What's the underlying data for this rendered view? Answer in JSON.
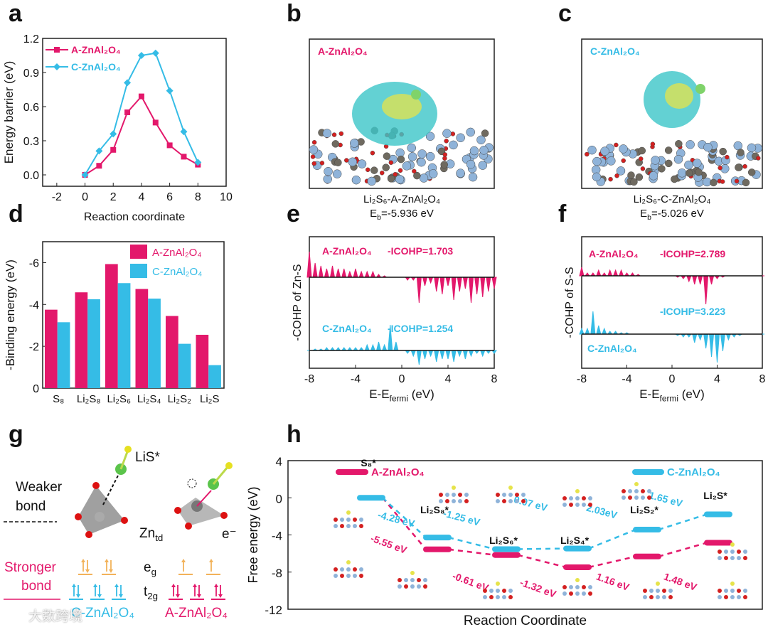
{
  "colors": {
    "A": "#e3186b",
    "C": "#35bce6",
    "orange": "#f2b25a"
  },
  "panel_labels": [
    "a",
    "b",
    "c",
    "d",
    "e",
    "f",
    "g",
    "h"
  ],
  "chart_data": [
    {
      "id": "a",
      "type": "line",
      "xlabel": "Reaction coordinate",
      "ylabel": "Energy barrier (eV)",
      "xlim": [
        -3,
        10
      ],
      "ylim": [
        -0.1,
        1.2
      ],
      "xticks": [
        -2,
        0,
        2,
        4,
        6,
        8,
        10
      ],
      "yticks": [
        "0.0",
        "0.3",
        "0.6",
        "0.9",
        "1.2"
      ],
      "x": [
        0,
        1,
        2,
        3,
        4,
        5,
        6,
        7,
        8
      ],
      "series": [
        {
          "name": "A-ZnAl₂O₄",
          "marker": "square",
          "values": [
            0,
            0.08,
            0.22,
            0.55,
            0.69,
            0.46,
            0.26,
            0.16,
            0.09
          ]
        },
        {
          "name": "C-ZnAl₂O₄",
          "marker": "diamond",
          "values": [
            0,
            0.21,
            0.36,
            0.81,
            1.05,
            1.07,
            0.74,
            0.38,
            0.11
          ]
        }
      ],
      "legend": "top-left"
    },
    {
      "id": "d",
      "type": "bar",
      "ylabel": "-Binding energy (eV)",
      "ylim": [
        0,
        -7
      ],
      "yticks": [
        "0",
        "-2",
        "-4",
        "-6"
      ],
      "categories": [
        "S₈",
        "Li₂S₈",
        "Li₂S₆",
        "Li₂S₄",
        "Li₂S₂",
        "Li₂S"
      ],
      "series": [
        {
          "name": "A-ZnAl₂O₄",
          "values": [
            -3.75,
            -4.58,
            -5.93,
            -4.74,
            -3.45,
            -2.55
          ]
        },
        {
          "name": "C-ZnAl₂O₄",
          "values": [
            -3.15,
            -4.25,
            -5.02,
            -4.28,
            -2.12,
            -1.1
          ]
        }
      ],
      "legend": "top-right"
    },
    {
      "id": "e",
      "type": "area",
      "ylabel": "-COHP of Zn-S",
      "xlabel_main": "E-E",
      "xlabel_sub": "fermi",
      "xlabel_unit": " (eV)",
      "xlim": [
        -8,
        8
      ],
      "xticks": [
        "-8",
        "-4",
        "0",
        "4",
        "8"
      ],
      "x_step": 0.5,
      "series": [
        {
          "name": "A-ZnAl₂O₄",
          "icohp": "-ICOHP=1.703",
          "values": [
            0.9,
            0.5,
            0.4,
            0.3,
            0.4,
            0.3,
            0.3,
            0.2,
            0.3,
            0.2,
            0.2,
            0.2,
            0.1,
            0.05,
            0,
            0,
            0,
            -0.1,
            -0.1,
            -0.9,
            -0.3,
            -0.2,
            -0.5,
            -0.6,
            -0.3,
            -0.8,
            -0.5,
            -0.4,
            -0.9,
            -0.6,
            -0.7,
            -0.5,
            -0.4
          ]
        },
        {
          "name": "C-ZnAl₂O₄",
          "icohp": "-ICOHP=1.254",
          "values": [
            0,
            0.05,
            0.05,
            0.1,
            0.1,
            0.1,
            0.1,
            0.1,
            0.1,
            0.1,
            0.2,
            0.2,
            0.3,
            0.2,
            0.9,
            0.3,
            0,
            -0.1,
            -0.2,
            -0.5,
            -0.3,
            -0.2,
            -0.4,
            -0.3,
            -0.3,
            -0.4,
            -0.2,
            -0.3,
            -0.2,
            -0.1,
            -0.2,
            -0.1,
            -0.1
          ]
        }
      ]
    },
    {
      "id": "f",
      "type": "area",
      "ylabel": "-COHP of S-S",
      "xlabel_main": "E-E",
      "xlabel_sub": "fermi",
      "xlabel_unit": " (eV)",
      "xlim": [
        -8,
        8
      ],
      "xticks": [
        "-8",
        "-4",
        "0",
        "4",
        "8"
      ],
      "x_step": 0.5,
      "series": [
        {
          "name": "A-ZnAl₂O₄",
          "icohp": "-ICOHP=2.789",
          "values": [
            0.3,
            0.1,
            0.1,
            0.2,
            0.1,
            0.2,
            0.2,
            0.2,
            0.1,
            0.1,
            0.05,
            0,
            0,
            0,
            0,
            0,
            0,
            -0.05,
            -0.1,
            -0.2,
            -0.3,
            -0.3,
            -1.0,
            -0.3,
            -0.1,
            -0.05,
            0,
            0,
            0,
            0,
            0,
            0,
            0
          ]
        },
        {
          "name": "C-ZnAl₂O₄",
          "icohp": "-ICOHP=3.223",
          "values": [
            0.2,
            0.2,
            0.8,
            0.3,
            0.2,
            0.1,
            0.1,
            0.05,
            0.05,
            0,
            0,
            0,
            0,
            0,
            0,
            0,
            0,
            -0.05,
            -0.1,
            -0.1,
            -0.3,
            -0.2,
            -0.5,
            -0.8,
            -1.0,
            -0.6,
            -0.2,
            -0.1,
            -0.05,
            0,
            0,
            0,
            0
          ]
        }
      ]
    },
    {
      "id": "h",
      "type": "line",
      "xlabel": "Reaction Coordinate",
      "ylabel": "Free energy (eV)",
      "ylim": [
        -12,
        4
      ],
      "yticks": [
        "-12",
        "-8",
        "-4",
        "0",
        "4"
      ],
      "categories": [
        "S₈*",
        "Li₂S₈*",
        "Li₂S₆*",
        "Li₂S₄*",
        "Li₂S₂*",
        "Li₂S*"
      ],
      "series": [
        {
          "name": "A-ZnAl₂O₄",
          "values": [
            0,
            -5.55,
            -6.16,
            -7.48,
            -6.32,
            -4.84
          ],
          "steps": [
            "-5.55 eV",
            "-0.61 eV",
            "-1.32 eV",
            "1.16 eV",
            "1.48 eV"
          ]
        },
        {
          "name": "C-ZnAl₂O₄",
          "values": [
            0,
            -4.28,
            -5.53,
            -5.46,
            -3.43,
            -1.78
          ],
          "steps": [
            "-4.28 eV",
            "-1.25 eV",
            "0.07 eV",
            "2.03eV",
            "1.65 eV"
          ]
        }
      ],
      "legend": "top-left / top-right"
    }
  ],
  "panel_b": {
    "title": "A-ZnAl₂O₄",
    "cap1": "Li₂S₆-A-ZnAl₂O₄",
    "cap2_main": "E",
    "cap2_sub": "b",
    "cap2_val": "=-5.936 eV"
  },
  "panel_c": {
    "title": "C-ZnAl₂O₄",
    "cap1": "Li₂S₆-C-ZnAl₂O₄",
    "cap2_main": "E",
    "cap2_sub": "b",
    "cap2_val": "=-5.026 eV"
  },
  "panel_g": {
    "lis": "LiS*",
    "weaker": "Weaker",
    "bond": "bond",
    "stronger": "Stronger",
    "zn": "Zn",
    "zn_sub": "td",
    "e": "e⁻",
    "eg": "e",
    "eg_sub": "g",
    "t2g": "t",
    "t2g_sub": "2g",
    "c_label": "C-ZnAl₂O₄",
    "a_label": "A-ZnAl₂O₄"
  },
  "watermark": "大数跨境"
}
